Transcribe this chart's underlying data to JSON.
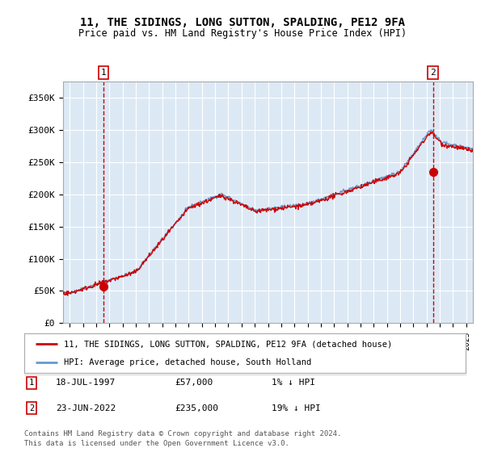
{
  "title": "11, THE SIDINGS, LONG SUTTON, SPALDING, PE12 9FA",
  "subtitle": "Price paid vs. HM Land Registry's House Price Index (HPI)",
  "legend_line1": "11, THE SIDINGS, LONG SUTTON, SPALDING, PE12 9FA (detached house)",
  "legend_line2": "HPI: Average price, detached house, South Holland",
  "footnote1": "Contains HM Land Registry data © Crown copyright and database right 2024.",
  "footnote2": "This data is licensed under the Open Government Licence v3.0.",
  "table_rows": [
    {
      "num": "1",
      "date": "18-JUL-1997",
      "price": "£57,000",
      "hpi": "1% ↓ HPI"
    },
    {
      "num": "2",
      "date": "23-JUN-2022",
      "price": "£235,000",
      "hpi": "19% ↓ HPI"
    }
  ],
  "ylabel_ticks": [
    "£0",
    "£50K",
    "£100K",
    "£150K",
    "£200K",
    "£250K",
    "£300K",
    "£350K"
  ],
  "ytick_values": [
    0,
    50000,
    100000,
    150000,
    200000,
    250000,
    300000,
    350000
  ],
  "ylim": [
    0,
    375000
  ],
  "xlim_start": 1994.5,
  "xlim_end": 2025.5,
  "bg_color": "#dce9f5",
  "line_color_red": "#cc0000",
  "line_color_blue": "#6699cc",
  "dot_color_red": "#cc0000",
  "vline_color": "#cc0000",
  "marker1_year": 1997.54,
  "marker1_value": 57000,
  "marker2_year": 2022.48,
  "marker2_value": 235000
}
